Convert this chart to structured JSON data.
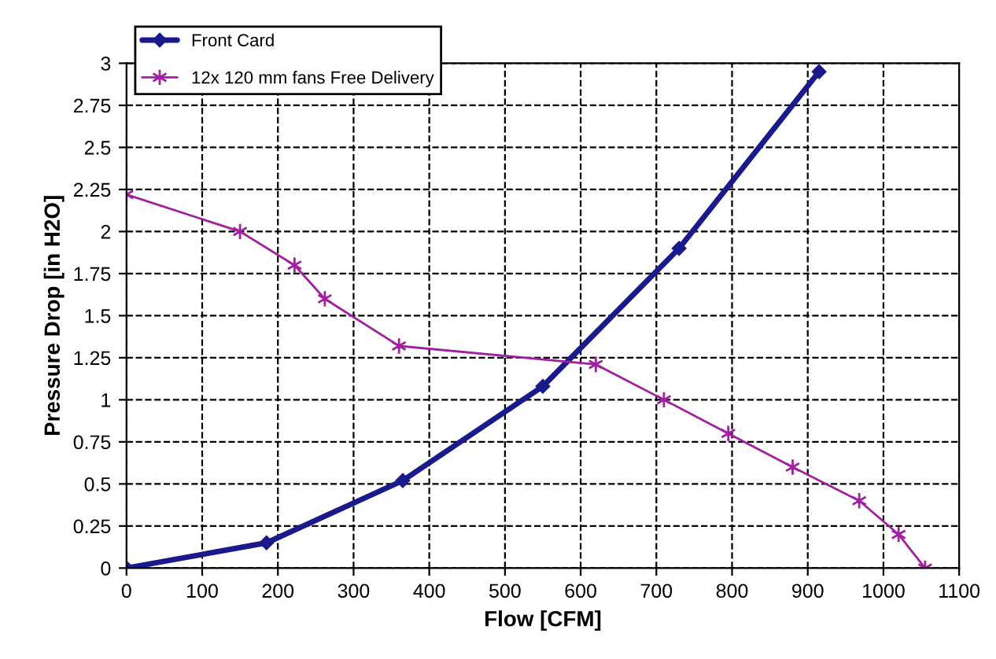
{
  "chart_data": {
    "type": "line",
    "xlabel": "Flow [CFM]",
    "ylabel": "Pressure Drop [in H2O]",
    "xlim": [
      0,
      1100
    ],
    "xticks": [
      0,
      100,
      200,
      300,
      400,
      500,
      600,
      700,
      800,
      900,
      1000,
      1100
    ],
    "ylim": [
      0,
      3
    ],
    "yticks": [
      0,
      0.25,
      0.5,
      0.75,
      1,
      1.25,
      1.5,
      1.75,
      2,
      2.25,
      2.5,
      2.75,
      3
    ],
    "grid": true,
    "legend": "top left",
    "series": [
      {
        "name": "Front Card",
        "color": "#1a1a8c",
        "marker": "diamond",
        "x": [
          0,
          185,
          365,
          550,
          730,
          915
        ],
        "values": [
          0,
          0.15,
          0.52,
          1.08,
          1.9,
          2.95
        ]
      },
      {
        "name": "12x 120 mm fans Free Delivery",
        "color": "#a020a0",
        "marker": "cross",
        "x": [
          0,
          150,
          222,
          262,
          360,
          620,
          710,
          795,
          880,
          968,
          1020,
          1055
        ],
        "values": [
          2.22,
          2.0,
          1.8,
          1.6,
          1.32,
          1.21,
          1.0,
          0.8,
          0.6,
          0.4,
          0.2,
          0
        ]
      }
    ]
  }
}
